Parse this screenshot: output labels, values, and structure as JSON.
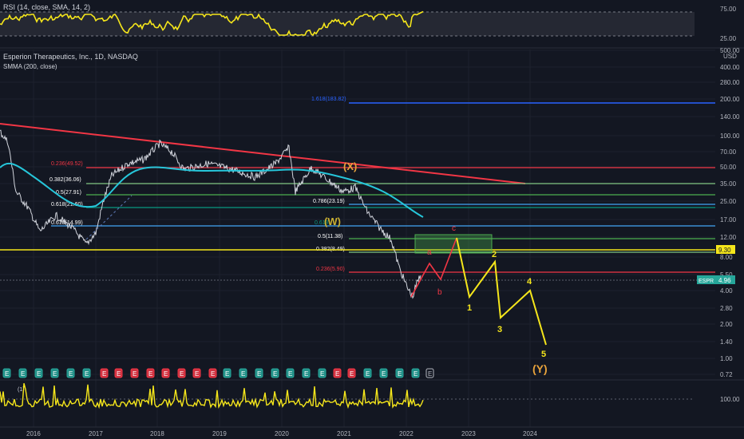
{
  "rsi_panel": {
    "title": "RSI (14, close, SMA, 14, 2)",
    "scale": [
      "75.00",
      "25.00"
    ]
  },
  "main_panel": {
    "symbol_title": "Esperion Therapeutics, Inc., 1D, NASDAQ",
    "indicator": "SMMA (200, close)",
    "currency": "USD",
    "price_scale": [
      "500.00",
      "400.00",
      "280.00",
      "200.00",
      "140.00",
      "100.00",
      "70.00",
      "50.00",
      "35.00",
      "25.00",
      "17.00",
      "12.00",
      "8.00",
      "5.50",
      "4.00",
      "2.80",
      "2.00",
      "1.40",
      "1.00",
      "0.72"
    ],
    "price_badges": [
      {
        "text": "9.30",
        "bg": "#f5e61b",
        "fg": "#131722"
      },
      {
        "text": "4.96",
        "bg": "#26a69a",
        "fg": "#ffffff"
      }
    ],
    "symbol_badge": "ESPR"
  },
  "fib_upper": [
    {
      "label": "1.618(183.82)",
      "color": "#2962ff"
    },
    {
      "label": "0.236(49.52)",
      "color": "#f23645"
    },
    {
      "label": "0.382(36.06)",
      "color": "#81c784"
    },
    {
      "label": "0.5(27.91)",
      "color": "#4caf50"
    },
    {
      "label": "0.618(21.60)",
      "color": "#089981"
    },
    {
      "label": "0.786(23.19)",
      "color": "#42a5f5"
    }
  ],
  "fib_lower": [
    {
      "label": "0.618(14.99)",
      "color": "#42a5f5"
    },
    {
      "label": "0.618",
      "color": "#089981"
    },
    {
      "label": "0.5(11.38)",
      "color": "#4caf50"
    },
    {
      "label": "0.382(8.49)",
      "color": "#81c784"
    },
    {
      "label": "0.236(5.90)",
      "color": "#f23645"
    }
  ],
  "wave_labels": {
    "x": "(X)",
    "w": "(W)",
    "y": "(Y)",
    "a": "a",
    "b": "b",
    "c": "c",
    "n1": "1",
    "n2": "2",
    "n3": "3",
    "n4": "4",
    "n5": "5"
  },
  "earnings_marker": "E",
  "volume_panel": {
    "scale": "100.00",
    "title": "(1)"
  },
  "time_axis": [
    "2016",
    "2017",
    "2018",
    "2019",
    "2020",
    "2021",
    "2022",
    "2023",
    "2024"
  ],
  "colors": {
    "background": "#131722",
    "grid": "#1e222d",
    "rsi": "#f5e61b",
    "smma": "#26c6da",
    "trendline": "#f23645",
    "wave_yellow": "#f5e61b",
    "wave_red": "#f23645",
    "wave_orange": "#e8a33c"
  }
}
